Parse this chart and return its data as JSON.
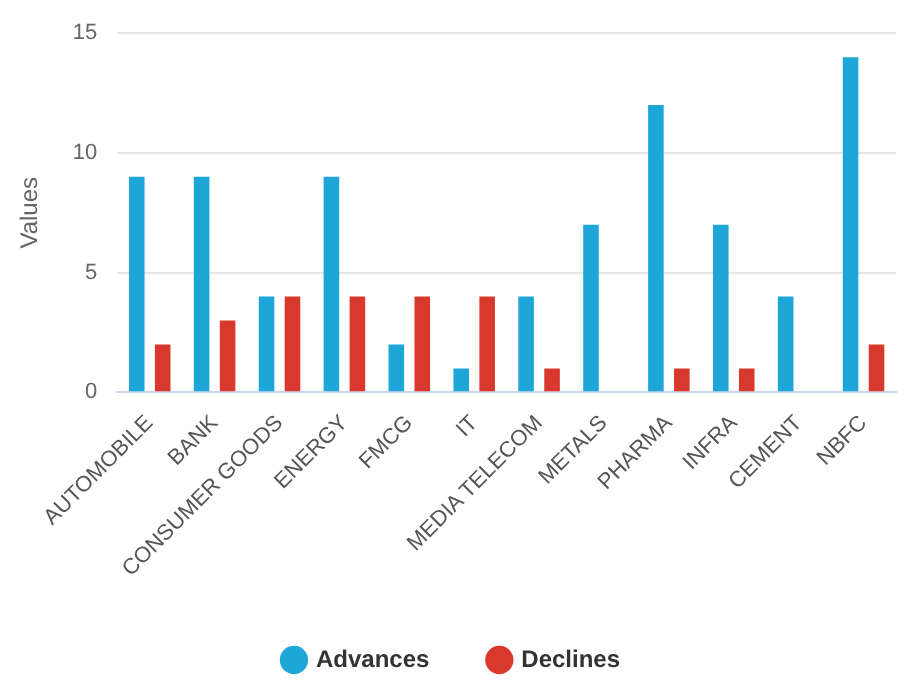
{
  "chart_data": {
    "type": "bar",
    "ylabel": "Values",
    "categories": [
      "AUTOMOBILE",
      "BANK",
      "CONSUMER GOODS",
      "ENERGY",
      "FMCG",
      "IT",
      "MEDIA TELECOM",
      "METALS",
      "PHARMA",
      "INFRA",
      "CEMENT",
      "NBFC"
    ],
    "series": [
      {
        "name": "Advances",
        "color": "#1ea6d9",
        "values": [
          9,
          9,
          4,
          9,
          2,
          1,
          4,
          7,
          12,
          7,
          4,
          14
        ]
      },
      {
        "name": "Declines",
        "color": "#d9392c",
        "values": [
          2,
          3,
          4,
          4,
          4,
          4,
          1,
          0,
          1,
          1,
          0,
          2
        ]
      }
    ],
    "ylim": [
      0,
      15
    ],
    "yticks": [
      0,
      5,
      10,
      15
    ],
    "grid": "y",
    "legend": "bottom",
    "marker": "circle"
  }
}
